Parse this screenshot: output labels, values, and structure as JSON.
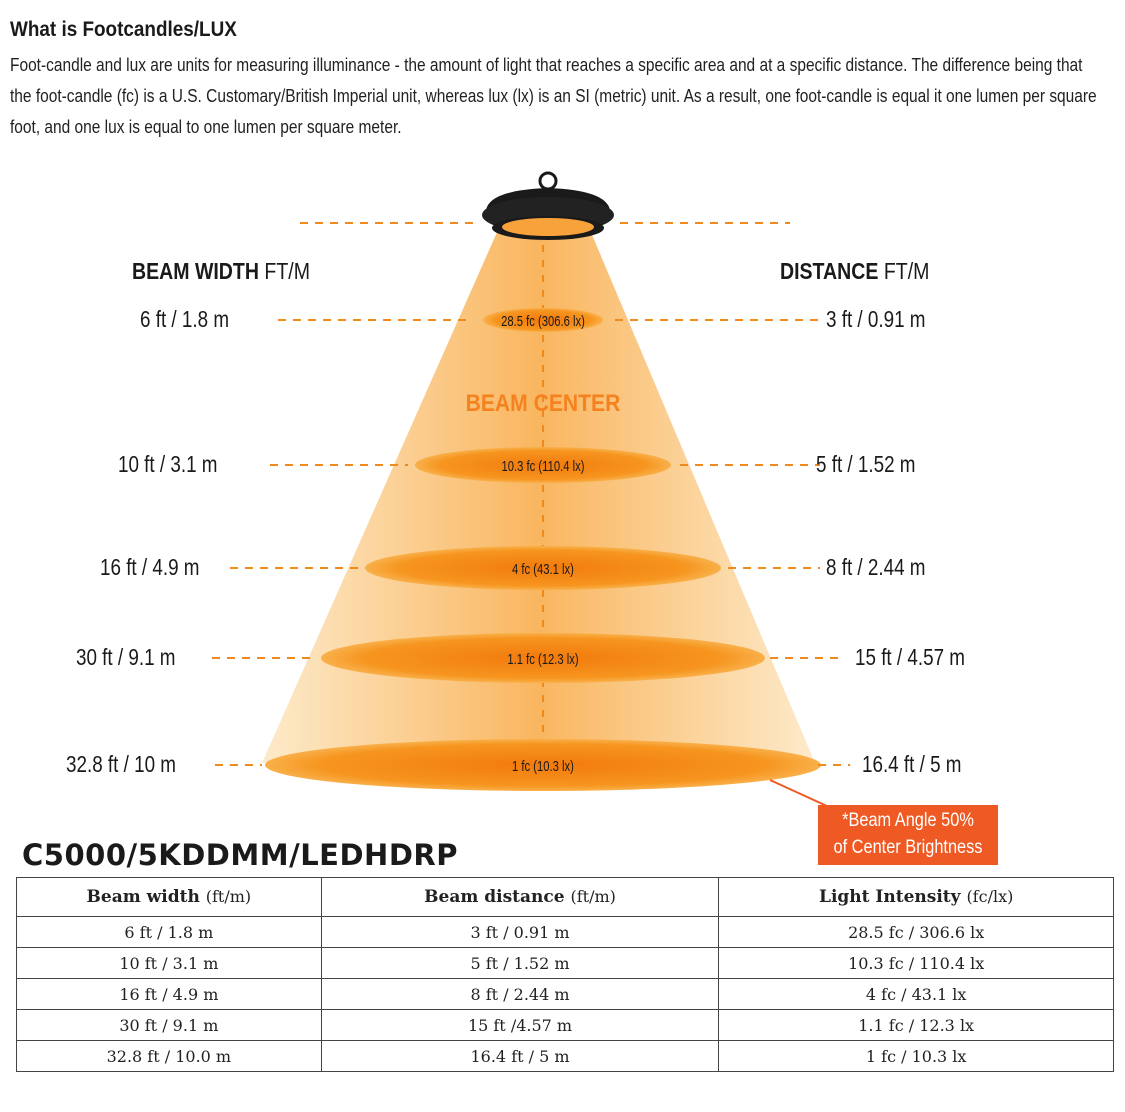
{
  "intro": {
    "title": "What is Footcandles/LUX",
    "body": "Foot-candle and lux are units for measuring illuminance - the amount of light that reaches a specific area and at a specific distance. The difference being that the foot-candle (fc) is a U.S. Customary/British Imperial unit, whereas lux (lx) is an SI (metric) unit. As a result, one foot-candle is equal it one lumen per square foot, and one lux is equal to one lumen per square meter."
  },
  "diagram": {
    "beam_width_label": "BEAM WIDTH",
    "beam_width_unit": "FT/M",
    "distance_label": "DISTANCE",
    "distance_unit": "FT/M",
    "beam_center": "BEAM CENTER",
    "levels": [
      {
        "width": "6 ft / 1.8 m",
        "distance": "3 ft / 0.91 m",
        "intensity": "28.5 fc (306.6 lx)"
      },
      {
        "width": "10 ft / 3.1 m",
        "distance": "5 ft / 1.52 m",
        "intensity": "10.3 fc (110.4 lx)"
      },
      {
        "width": "16 ft / 4.9 m",
        "distance": "8 ft / 2.44 m",
        "intensity": "4 fc (43.1 lx)"
      },
      {
        "width": "30 ft / 9.1 m",
        "distance": "15 ft / 4.57 m",
        "intensity": "1.1 fc (12.3 lx)"
      },
      {
        "width": "32.8 ft / 10 m",
        "distance": "16.4 ft / 5 m",
        "intensity": "1 fc (10.3 lx)"
      }
    ],
    "callout_line1": "*Beam Angle 50%",
    "callout_line2": "of Center Brightness",
    "colors": {
      "beam_light": "#fbd9a4",
      "beam_dark": "#f7a23a",
      "ellipse": "#f07d10",
      "dash": "#f08a1c",
      "callout": "#ef5a24"
    }
  },
  "model": "C5000/5KDDMM/LEDHDRP",
  "table": {
    "headers": [
      {
        "label": "Beam width",
        "unit": "(ft/m)"
      },
      {
        "label": "Beam distance",
        "unit": "(ft/m)"
      },
      {
        "label": "Light Intensity",
        "unit": "(fc/lx)"
      }
    ],
    "rows": [
      [
        "6 ft / 1.8 m",
        "3 ft / 0.91 m",
        "28.5 fc / 306.6 lx"
      ],
      [
        "10 ft / 3.1 m",
        "5 ft / 1.52 m",
        "10.3 fc / 110.4 lx"
      ],
      [
        "16 ft / 4.9 m",
        "8 ft / 2.44 m",
        "4 fc / 43.1 lx"
      ],
      [
        "30 ft / 9.1 m",
        "15 ft /4.57 m",
        "1.1 fc / 12.3 lx"
      ],
      [
        "32.8 ft / 10.0 m",
        "16.4 ft / 5 m",
        "1 fc / 10.3 lx"
      ]
    ]
  }
}
